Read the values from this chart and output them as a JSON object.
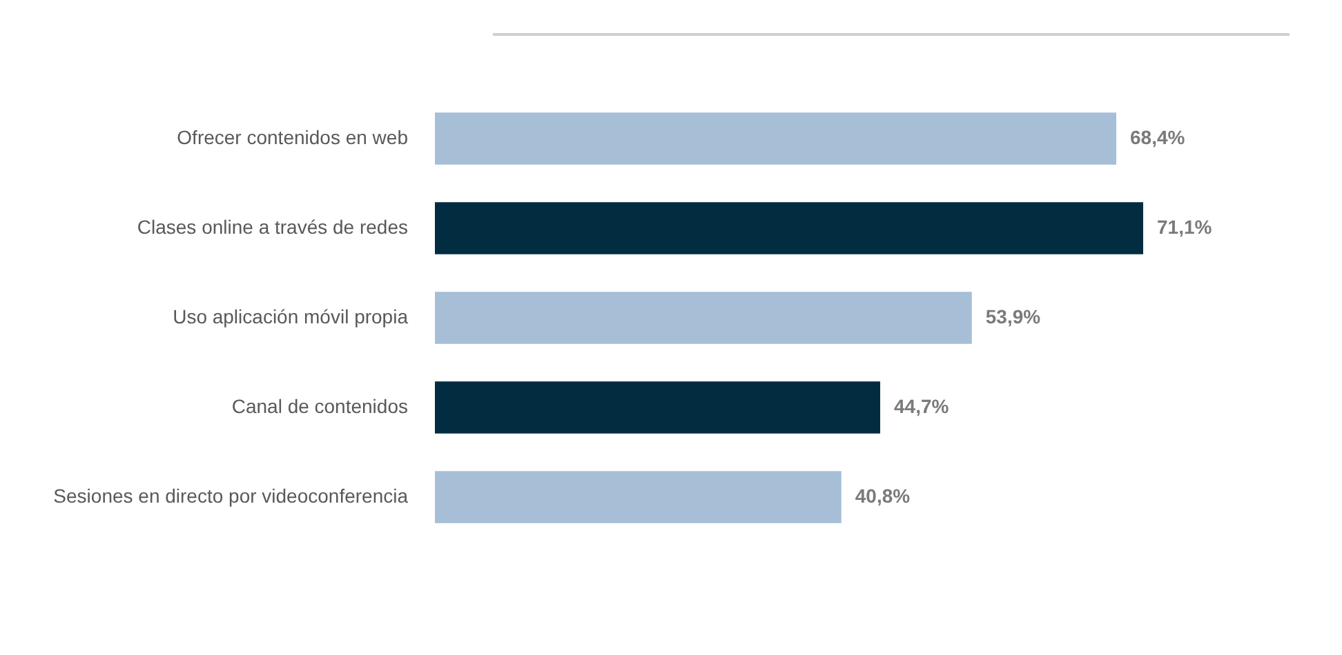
{
  "chart_data": {
    "type": "bar",
    "orientation": "horizontal",
    "categories": [
      "Ofrecer contenidos en web",
      "Clases online a través de redes",
      "Uso aplicación móvil propia",
      "Canal de contenidos",
      "Sesiones en directo por videoconferencia"
    ],
    "values": [
      68.4,
      71.1,
      53.9,
      44.7,
      40.8
    ],
    "colors": [
      "#a6bfd7",
      "#022d40",
      "#a6bfd7",
      "#022d40",
      "#a6bfd7"
    ],
    "value_labels": [
      "68,4%",
      "71,1%",
      "53,9%",
      "44,7%",
      "40,8%"
    ]
  }
}
